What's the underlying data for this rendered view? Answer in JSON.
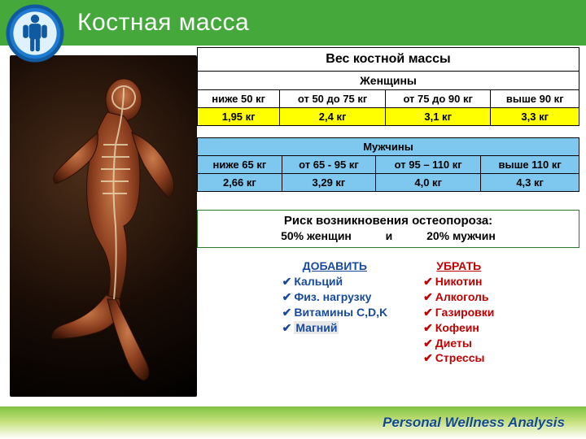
{
  "title": "Костная масса",
  "footer": "Personal Wellness Analysis",
  "colors": {
    "titlebar_bg": "#44a83a",
    "women_value_bg": "#ffff00",
    "men_bg": "#7ec7ee",
    "risk_border": "#2b7a2b",
    "add_color": "#184a9c",
    "remove_color": "#c00000",
    "footer_text": "#134a8f"
  },
  "logo": {
    "name": "body-silhouette-badge",
    "ring_outer": "#0f5aa0",
    "ring_inner": "#1e7bd0",
    "fill": "#ffffff"
  },
  "table_women": {
    "title": "Вес костной массы",
    "gender": "Женщины",
    "ranges": [
      "ниже 50 кг",
      "от 50 до 75 кг",
      "от 75 до 90 кг",
      "выше 90 кг"
    ],
    "values": [
      "1,95 кг",
      "2,4 кг",
      "3,1 кг",
      "3,3 кг"
    ]
  },
  "table_men": {
    "gender": "Мужчины",
    "ranges": [
      "ниже 65 кг",
      "от 65 - 95 кг",
      "от 95 – 110 кг",
      "выше 110 кг"
    ],
    "values": [
      "2,66 кг",
      "3,29 кг",
      "4,0 кг",
      "4,3 кг"
    ]
  },
  "risk": {
    "title": "Риск  возникновения остеопороза:",
    "line_women": "50% женщин",
    "line_and": "и",
    "line_men": "20% мужчин"
  },
  "add": {
    "header": "ДОБАВИТЬ",
    "items": [
      "Кальций",
      "Физ. нагрузку",
      "Витамины C,D,K",
      "Магний"
    ],
    "highlight_index": 3
  },
  "remove": {
    "header": "УБРАТЬ",
    "items": [
      "Никотин",
      "Алкоголь",
      "Газировки",
      "Кофеин",
      "Диеты",
      "Стрессы"
    ]
  },
  "checkmark": "✔"
}
